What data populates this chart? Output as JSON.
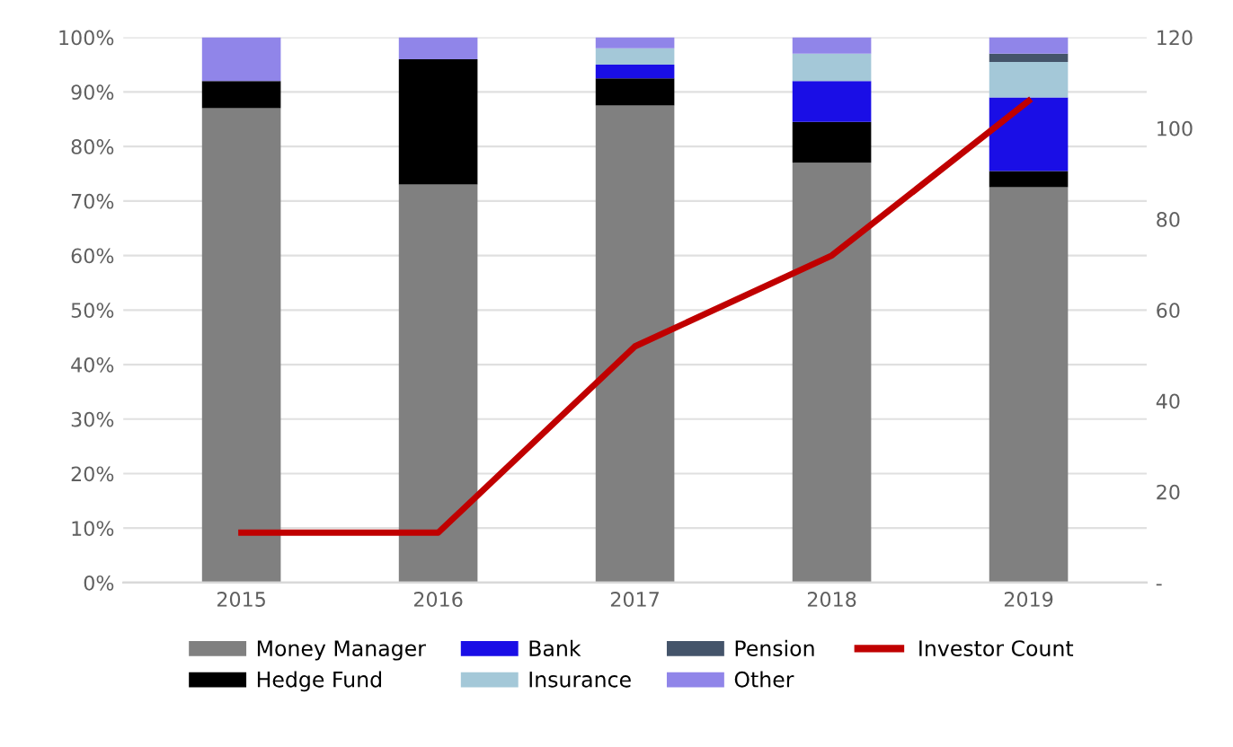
{
  "chart_data": {
    "type": "bar",
    "stacked": true,
    "categories": [
      "2015",
      "2016",
      "2017",
      "2018",
      "2019"
    ],
    "series": [
      {
        "name": "Money Manager",
        "color": "#808080",
        "values": [
          87,
          73,
          87.5,
          77,
          72.5
        ]
      },
      {
        "name": "Hedge Fund",
        "color": "#000000",
        "values": [
          5,
          23,
          5,
          7.5,
          3
        ]
      },
      {
        "name": "Bank",
        "color": "#1a0ee6",
        "values": [
          0,
          0,
          2.5,
          7.5,
          13.5
        ]
      },
      {
        "name": "Insurance",
        "color": "#a4c8d8",
        "values": [
          0,
          0,
          3,
          5,
          6.5
        ]
      },
      {
        "name": "Pension",
        "color": "#44546a",
        "values": [
          0,
          0,
          0,
          0,
          1.5
        ]
      },
      {
        "name": "Other",
        "color": "#9085e9",
        "values": [
          8,
          4,
          2,
          3,
          3
        ]
      },
      {
        "name": "Investor Count",
        "type": "line",
        "axis": "y2",
        "color": "#c00000",
        "values": [
          11,
          11,
          52,
          72,
          106
        ]
      }
    ],
    "ylim": [
      0,
      100
    ],
    "yticks": [
      {
        "value": 0,
        "label": "0%"
      },
      {
        "value": 10,
        "label": "10%"
      },
      {
        "value": 20,
        "label": "20%"
      },
      {
        "value": 30,
        "label": "30%"
      },
      {
        "value": 40,
        "label": "40%"
      },
      {
        "value": 50,
        "label": "50%"
      },
      {
        "value": 60,
        "label": "60%"
      },
      {
        "value": 70,
        "label": "70%"
      },
      {
        "value": 80,
        "label": "80%"
      },
      {
        "value": 90,
        "label": "90%"
      },
      {
        "value": 100,
        "label": "100%"
      }
    ],
    "y2lim": [
      0,
      120
    ],
    "y2ticks": [
      {
        "value": 0,
        "label": "-"
      },
      20,
      40,
      60,
      80,
      100,
      120
    ],
    "grid": "y",
    "legend": "bottom",
    "marker": "none",
    "line_style": "solid"
  }
}
